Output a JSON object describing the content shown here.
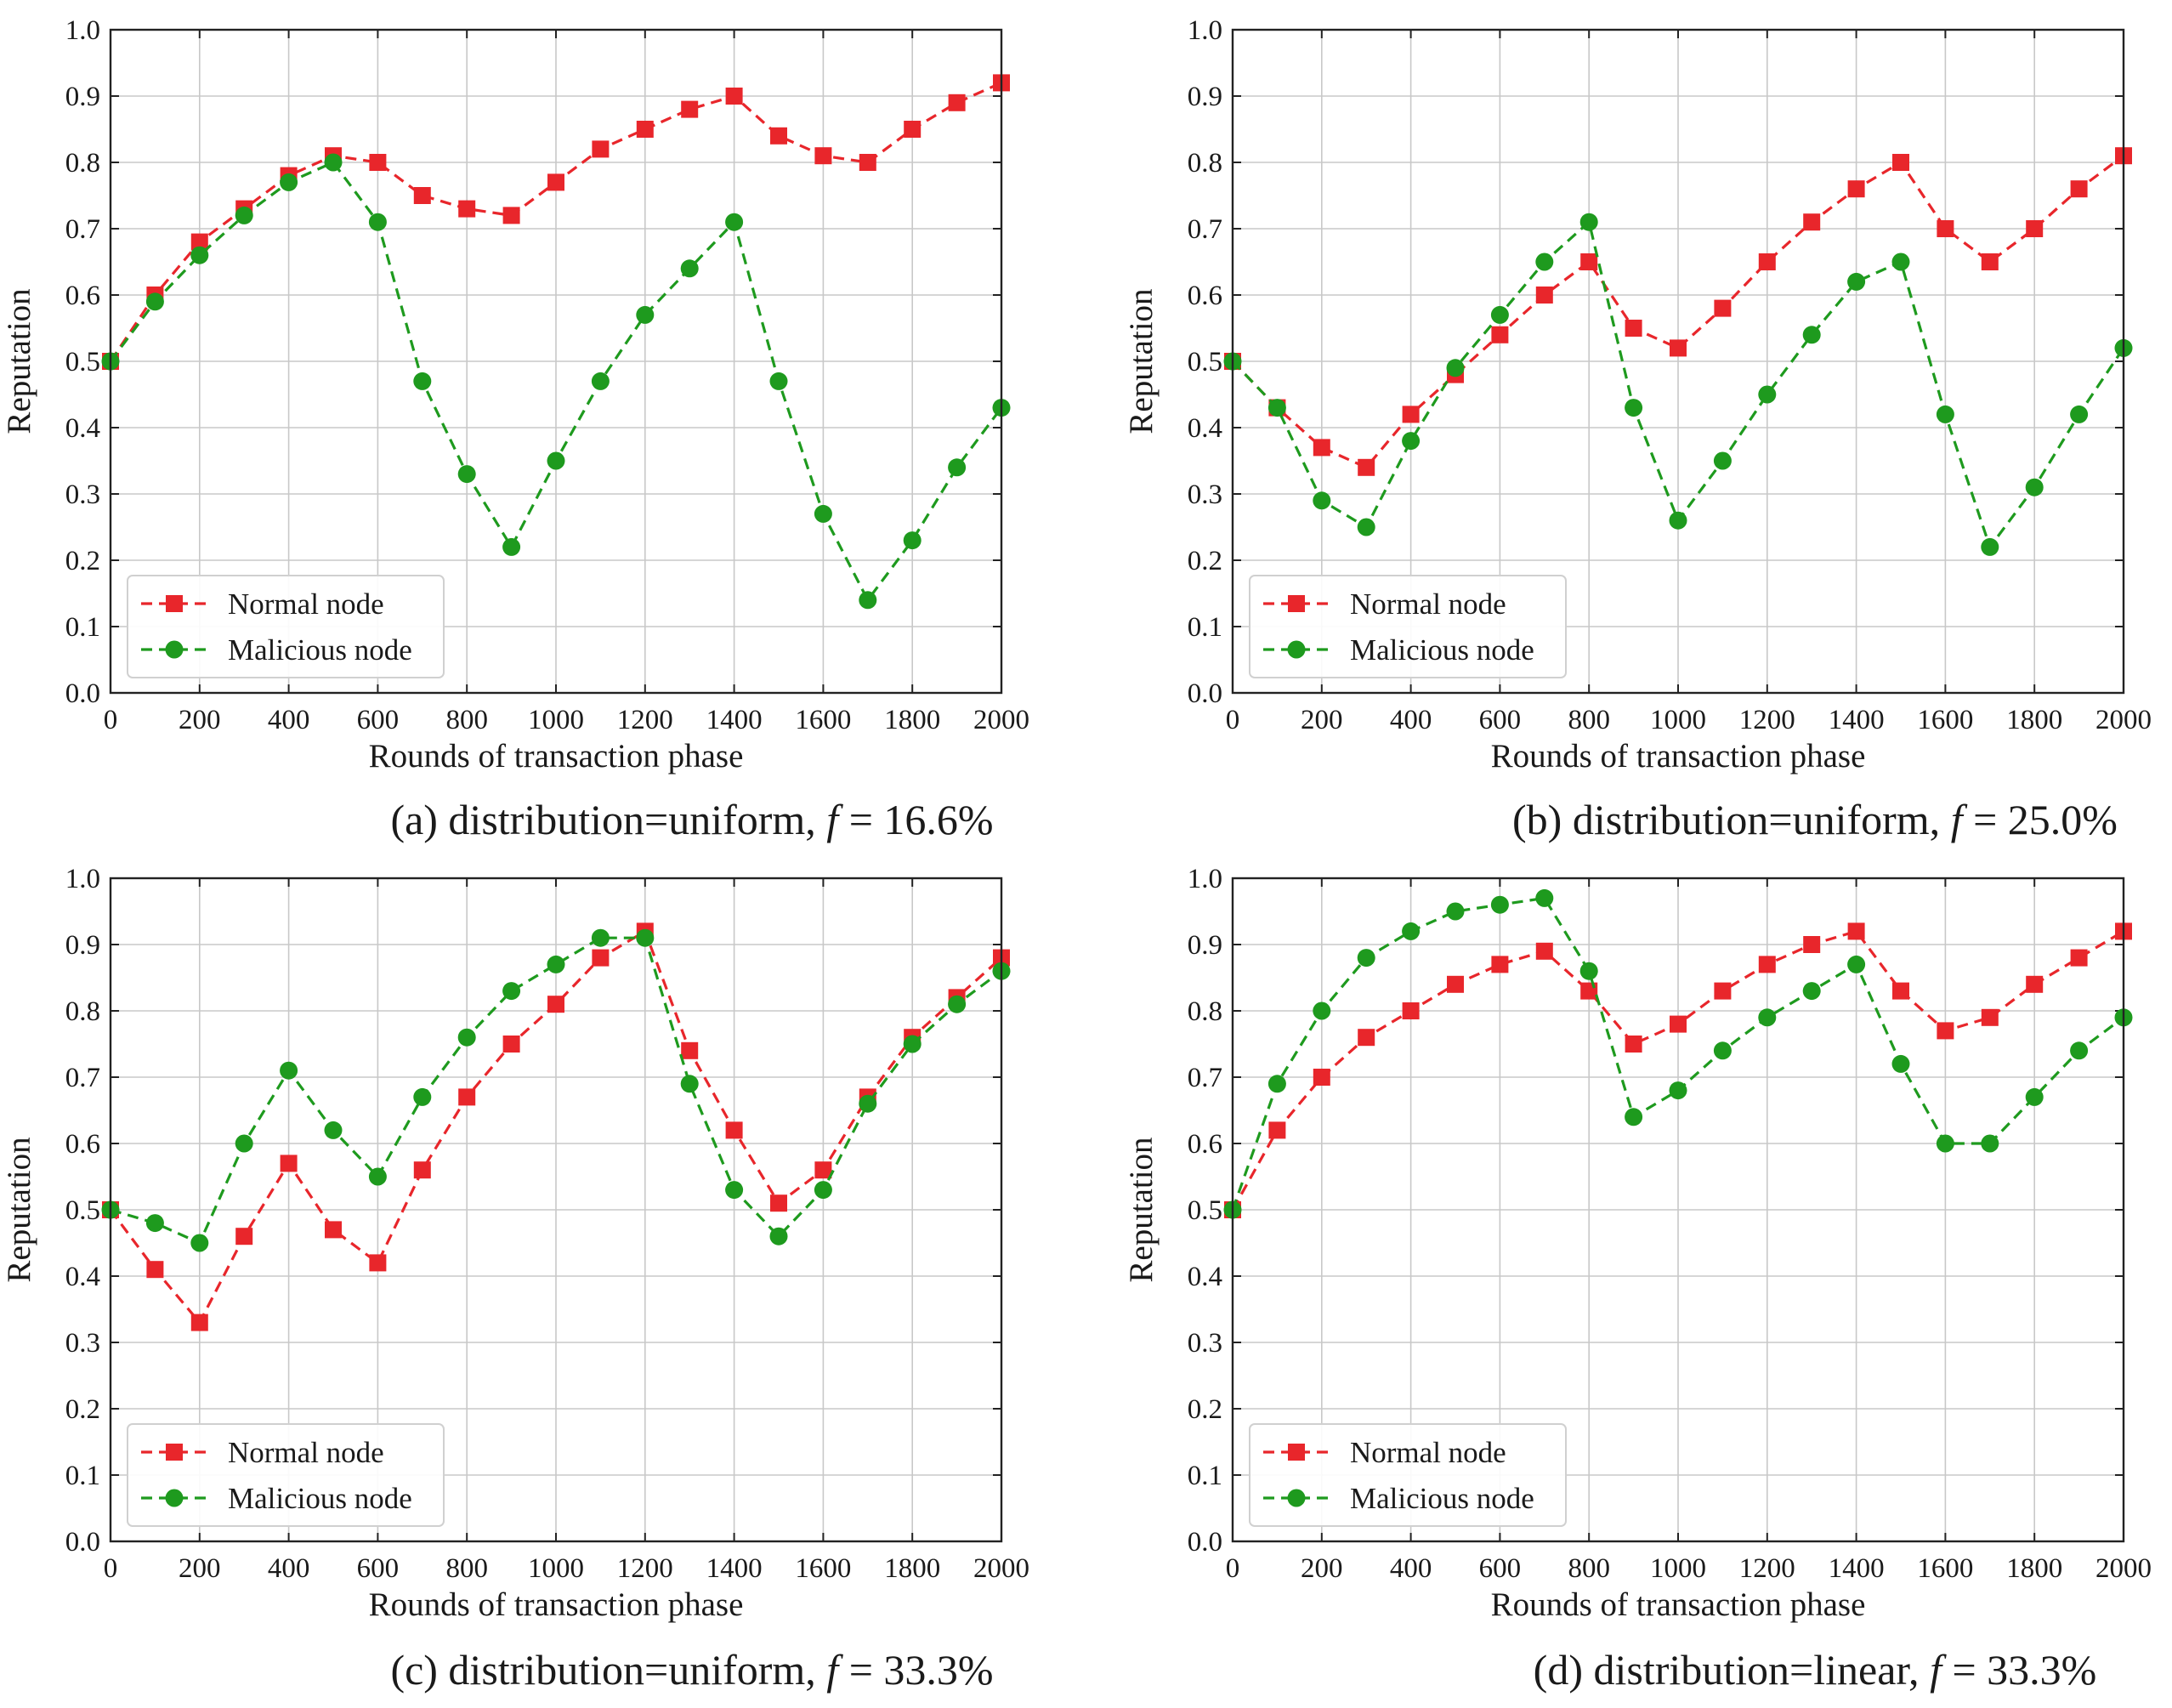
{
  "colors": {
    "normal": "#e8262b",
    "malicious": "#1e9a1e",
    "grid": "#c8c8c8",
    "axis": "#222222",
    "text": "#1a1a1a"
  },
  "chart_data": [
    {
      "type": "line",
      "panel": "a",
      "caption_prefix": "(a) distribution=uniform, ",
      "caption_var": "f",
      "caption_suffix": " = 16.6%",
      "xlabel": "Rounds of transaction phase",
      "ylabel": "Reputation",
      "xlim": [
        0,
        2000
      ],
      "ylim": [
        0,
        1.0
      ],
      "xticks": [
        "0",
        "200",
        "400",
        "600",
        "800",
        "1000",
        "1200",
        "1400",
        "1600",
        "1800",
        "2000"
      ],
      "yticks": [
        "0.0",
        "0.1",
        "0.2",
        "0.3",
        "0.4",
        "0.5",
        "0.6",
        "0.7",
        "0.8",
        "0.9",
        "1.0"
      ],
      "grid": true,
      "legend_position": "bottom-left",
      "x": [
        0,
        100,
        200,
        300,
        400,
        500,
        600,
        700,
        800,
        900,
        1000,
        1100,
        1200,
        1300,
        1400,
        1500,
        1600,
        1700,
        1800,
        1900,
        2000
      ],
      "series": [
        {
          "name": "Normal node",
          "marker": "square",
          "color": "#e8262b",
          "values": [
            0.5,
            0.6,
            0.68,
            0.73,
            0.78,
            0.81,
            0.8,
            0.75,
            0.73,
            0.72,
            0.77,
            0.82,
            0.85,
            0.88,
            0.9,
            0.84,
            0.81,
            0.8,
            0.85,
            0.89,
            0.92
          ]
        },
        {
          "name": "Malicious node",
          "marker": "circle",
          "color": "#1e9a1e",
          "values": [
            0.5,
            0.59,
            0.66,
            0.72,
            0.77,
            0.8,
            0.71,
            0.47,
            0.33,
            0.22,
            0.35,
            0.47,
            0.57,
            0.64,
            0.71,
            0.47,
            0.27,
            0.14,
            0.23,
            0.34,
            0.43
          ]
        }
      ]
    },
    {
      "type": "line",
      "panel": "b",
      "caption_prefix": "(b) distribution=uniform, ",
      "caption_var": "f",
      "caption_suffix": " = 25.0%",
      "xlabel": "Rounds of transaction phase",
      "ylabel": "Reputation",
      "xlim": [
        0,
        2000
      ],
      "ylim": [
        0,
        1.0
      ],
      "xticks": [
        "0",
        "200",
        "400",
        "600",
        "800",
        "1000",
        "1200",
        "1400",
        "1600",
        "1800",
        "2000"
      ],
      "yticks": [
        "0.0",
        "0.1",
        "0.2",
        "0.3",
        "0.4",
        "0.5",
        "0.6",
        "0.7",
        "0.8",
        "0.9",
        "1.0"
      ],
      "grid": true,
      "legend_position": "bottom-left",
      "x": [
        0,
        100,
        200,
        300,
        400,
        500,
        600,
        700,
        800,
        900,
        1000,
        1100,
        1200,
        1300,
        1400,
        1500,
        1600,
        1700,
        1800,
        1900,
        2000
      ],
      "series": [
        {
          "name": "Normal node",
          "marker": "square",
          "color": "#e8262b",
          "values": [
            0.5,
            0.43,
            0.37,
            0.34,
            0.42,
            0.48,
            0.54,
            0.6,
            0.65,
            0.55,
            0.52,
            0.58,
            0.65,
            0.71,
            0.76,
            0.8,
            0.7,
            0.65,
            0.7,
            0.76,
            0.81
          ]
        },
        {
          "name": "Malicious node",
          "marker": "circle",
          "color": "#1e9a1e",
          "values": [
            0.5,
            0.43,
            0.29,
            0.25,
            0.38,
            0.49,
            0.57,
            0.65,
            0.71,
            0.43,
            0.26,
            0.35,
            0.45,
            0.54,
            0.62,
            0.65,
            0.42,
            0.22,
            0.31,
            0.42,
            0.52
          ]
        }
      ]
    },
    {
      "type": "line",
      "panel": "c",
      "caption_prefix": "(c) distribution=uniform, ",
      "caption_var": "f",
      "caption_suffix": " = 33.3%",
      "xlabel": "Rounds of transaction phase",
      "ylabel": "Reputation",
      "xlim": [
        0,
        2000
      ],
      "ylim": [
        0,
        1.0
      ],
      "xticks": [
        "0",
        "200",
        "400",
        "600",
        "800",
        "1000",
        "1200",
        "1400",
        "1600",
        "1800",
        "2000"
      ],
      "yticks": [
        "0.0",
        "0.1",
        "0.2",
        "0.3",
        "0.4",
        "0.5",
        "0.6",
        "0.7",
        "0.8",
        "0.9",
        "1.0"
      ],
      "grid": true,
      "legend_position": "bottom-left",
      "x": [
        0,
        100,
        200,
        300,
        400,
        500,
        600,
        700,
        800,
        900,
        1000,
        1100,
        1200,
        1300,
        1400,
        1500,
        1600,
        1700,
        1800,
        1900,
        2000
      ],
      "series": [
        {
          "name": "Normal node",
          "marker": "square",
          "color": "#e8262b",
          "values": [
            0.5,
            0.41,
            0.33,
            0.46,
            0.57,
            0.47,
            0.42,
            0.56,
            0.67,
            0.75,
            0.81,
            0.88,
            0.92,
            0.74,
            0.62,
            0.51,
            0.56,
            0.67,
            0.76,
            0.82,
            0.88
          ]
        },
        {
          "name": "Malicious node",
          "marker": "circle",
          "color": "#1e9a1e",
          "values": [
            0.5,
            0.48,
            0.45,
            0.6,
            0.71,
            0.62,
            0.55,
            0.67,
            0.76,
            0.83,
            0.87,
            0.91,
            0.91,
            0.69,
            0.53,
            0.46,
            0.53,
            0.66,
            0.75,
            0.81,
            0.86
          ]
        }
      ]
    },
    {
      "type": "line",
      "panel": "d",
      "caption_prefix": "(d) distribution=linear, ",
      "caption_var": "f",
      "caption_suffix": " = 33.3%",
      "xlabel": "Rounds of transaction phase",
      "ylabel": "Reputation",
      "xlim": [
        0,
        2000
      ],
      "ylim": [
        0,
        1.0
      ],
      "xticks": [
        "0",
        "200",
        "400",
        "600",
        "800",
        "1000",
        "1200",
        "1400",
        "1600",
        "1800",
        "2000"
      ],
      "yticks": [
        "0.0",
        "0.1",
        "0.2",
        "0.3",
        "0.4",
        "0.5",
        "0.6",
        "0.7",
        "0.8",
        "0.9",
        "1.0"
      ],
      "grid": true,
      "legend_position": "bottom-left",
      "x": [
        0,
        100,
        200,
        300,
        400,
        500,
        600,
        700,
        800,
        900,
        1000,
        1100,
        1200,
        1300,
        1400,
        1500,
        1600,
        1700,
        1800,
        1900,
        2000
      ],
      "series": [
        {
          "name": "Normal node",
          "marker": "square",
          "color": "#e8262b",
          "values": [
            0.5,
            0.62,
            0.7,
            0.76,
            0.8,
            0.84,
            0.87,
            0.89,
            0.83,
            0.75,
            0.78,
            0.83,
            0.87,
            0.9,
            0.92,
            0.83,
            0.77,
            0.79,
            0.84,
            0.88,
            0.92
          ]
        },
        {
          "name": "Malicious node",
          "marker": "circle",
          "color": "#1e9a1e",
          "values": [
            0.5,
            0.69,
            0.8,
            0.88,
            0.92,
            0.95,
            0.96,
            0.97,
            0.86,
            0.64,
            0.68,
            0.74,
            0.79,
            0.83,
            0.87,
            0.72,
            0.6,
            0.6,
            0.67,
            0.74,
            0.79
          ]
        }
      ]
    }
  ]
}
